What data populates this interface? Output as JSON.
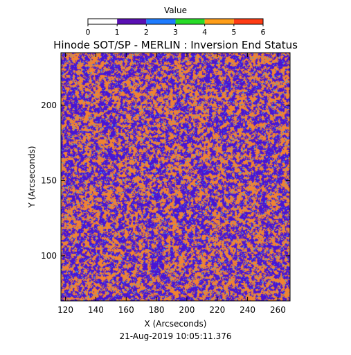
{
  "chart_data": {
    "type": "heatmap",
    "title": "Hinode SOT/SP - MERLIN : Inversion End Status",
    "xlabel": "X (Arcseconds)",
    "ylabel": "Y (Arcseconds)",
    "xlim": [
      117,
      268
    ],
    "ylim": [
      70,
      235
    ],
    "x_ticks": [
      120,
      140,
      160,
      180,
      200,
      220,
      240,
      260
    ],
    "y_ticks": [
      100,
      150,
      200
    ],
    "date_label": "21-Aug-2019 10:05:11.376",
    "colorbar": {
      "title": "Value",
      "ticks": [
        0,
        1,
        2,
        3,
        4,
        5,
        6
      ],
      "bins": [
        {
          "range": [
            0,
            1
          ],
          "color": "#ffffff"
        },
        {
          "range": [
            1,
            2
          ],
          "color": "#5a10b4"
        },
        {
          "range": [
            2,
            3
          ],
          "color": "#1e7cff"
        },
        {
          "range": [
            3,
            4
          ],
          "color": "#28dc28"
        },
        {
          "range": [
            4,
            5
          ],
          "color": "#ff9e19"
        },
        {
          "range": [
            5,
            6
          ],
          "color": "#ff3c14"
        }
      ]
    },
    "pixel_colors": {
      "1": "#4b14d2",
      "2": "#34a5f0",
      "4": "#f08232"
    },
    "value_fractions": {
      "1": 0.5,
      "2": 0.06,
      "4": 0.44
    }
  }
}
